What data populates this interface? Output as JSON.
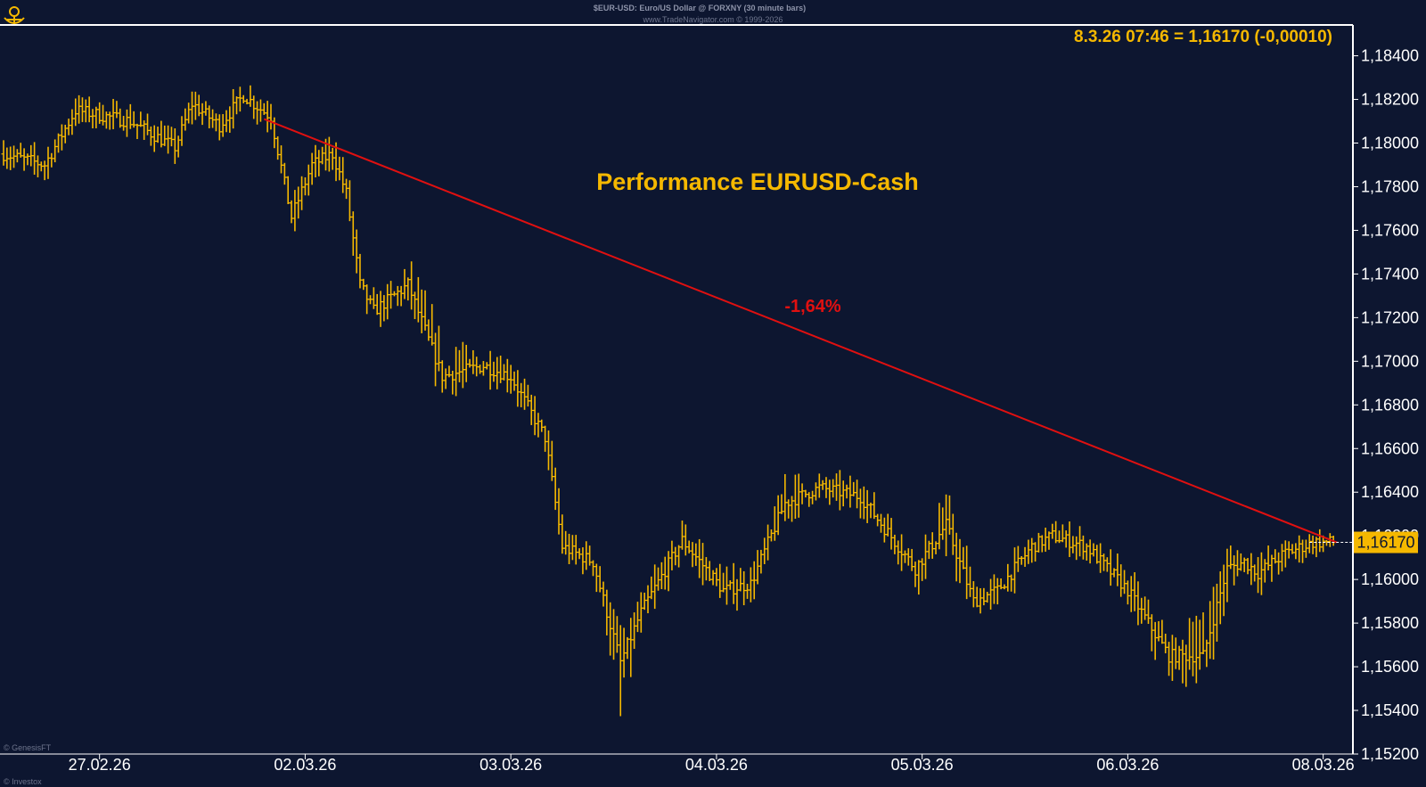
{
  "header": {
    "title": "$EUR-USD: Euro/US Dollar @ FORXNY  (30 minute bars)",
    "copyright": "www.TradeNavigator.com © 1999-2026"
  },
  "watermarks": {
    "bottom_left_1": "© GenesisFT",
    "bottom_left_2": "© Investox"
  },
  "colors": {
    "background": "#0d1630",
    "bars": "#f5b800",
    "accent": "#f5b800",
    "trendline": "#e01010",
    "axis_text": "#ffffff",
    "grid_border": "#ffffff"
  },
  "chart_data": {
    "type": "ohlc",
    "title": "Performance EURUSD-Cash",
    "quote": "8.3.26 07:46 = 1,16170 (-0,00010)",
    "last_price_label": "1,16170",
    "last_price": 1.1617,
    "ylim": [
      1.152,
      1.1848
    ],
    "y_ticks": [
      1.184,
      1.182,
      1.18,
      1.178,
      1.176,
      1.174,
      1.172,
      1.17,
      1.168,
      1.166,
      1.164,
      1.162,
      1.16,
      1.158,
      1.156,
      1.154,
      1.152
    ],
    "y_tick_labels": [
      "1,18400",
      "1,18200",
      "1,18000",
      "1,17800",
      "1,17600",
      "1,17400",
      "1,17200",
      "1,17000",
      "1,16800",
      "1,16600",
      "1,16400",
      "1,16200",
      "1,16000",
      "1,15800",
      "1,15600",
      "1,15400",
      "1,15200"
    ],
    "x_labels": [
      "27.02.26",
      "02.03.26",
      "03.03.26",
      "04.03.26",
      "05.03.26",
      "06.03.26",
      "08.03.26"
    ],
    "x_label_bar_index": [
      28,
      88,
      148,
      208,
      268,
      328,
      385
    ],
    "bars_count": 389,
    "annotation": {
      "text": "-1,64%"
    },
    "trendline": {
      "from": {
        "bar": 76,
        "price": 1.1811
      },
      "to": {
        "bar": 389,
        "price": 1.1617
      }
    },
    "path_bar_index": [
      0,
      12,
      21,
      37,
      50,
      55,
      63,
      70,
      73,
      78,
      84,
      90,
      96,
      100,
      104,
      108,
      118,
      128,
      140,
      148,
      158,
      163,
      172,
      180,
      186,
      198,
      210,
      218,
      228,
      238,
      250,
      266,
      275,
      283,
      290,
      300,
      306,
      316,
      328,
      340,
      350,
      357,
      362,
      366,
      374,
      382,
      389
    ],
    "path_close": [
      1.1795,
      1.179,
      1.1815,
      1.181,
      1.1798,
      1.1818,
      1.1808,
      1.1822,
      1.1818,
      1.1812,
      1.1766,
      1.179,
      1.1795,
      1.1777,
      1.1735,
      1.1723,
      1.1735,
      1.1693,
      1.1698,
      1.1693,
      1.1665,
      1.1615,
      1.1608,
      1.1562,
      1.1585,
      1.1618,
      1.1595,
      1.1598,
      1.1635,
      1.1642,
      1.1638,
      1.1605,
      1.1625,
      1.159,
      1.1595,
      1.1615,
      1.162,
      1.1615,
      1.1595,
      1.1565,
      1.1565,
      1.1605,
      1.1608,
      1.1603,
      1.1612,
      1.1617,
      1.1617
    ],
    "path_high": [
      1.1802,
      1.1797,
      1.1823,
      1.1817,
      1.1805,
      1.1825,
      1.1815,
      1.1829,
      1.1825,
      1.1819,
      1.1774,
      1.1797,
      1.1803,
      1.1785,
      1.1747,
      1.1731,
      1.1745,
      1.1713,
      1.1706,
      1.1701,
      1.1673,
      1.1624,
      1.1617,
      1.1575,
      1.1596,
      1.1627,
      1.1605,
      1.1607,
      1.1652,
      1.1649,
      1.1646,
      1.1614,
      1.1643,
      1.1599,
      1.1604,
      1.1622,
      1.1627,
      1.1622,
      1.1605,
      1.1575,
      1.1591,
      1.1616,
      1.1617,
      1.1612,
      1.162,
      1.1623,
      1.1619
    ],
    "path_low": [
      1.1788,
      1.1783,
      1.1808,
      1.1803,
      1.1791,
      1.1811,
      1.1801,
      1.1815,
      1.1811,
      1.1805,
      1.1758,
      1.1783,
      1.1788,
      1.177,
      1.1723,
      1.1715,
      1.1725,
      1.1681,
      1.169,
      1.1685,
      1.1657,
      1.1606,
      1.1599,
      1.1531,
      1.1575,
      1.1609,
      1.1585,
      1.1589,
      1.1625,
      1.1635,
      1.163,
      1.1596,
      1.1607,
      1.1582,
      1.1586,
      1.1608,
      1.1613,
      1.1608,
      1.1586,
      1.1551,
      1.1548,
      1.1594,
      1.1599,
      1.1595,
      1.1604,
      1.1611,
      1.1615
    ]
  }
}
